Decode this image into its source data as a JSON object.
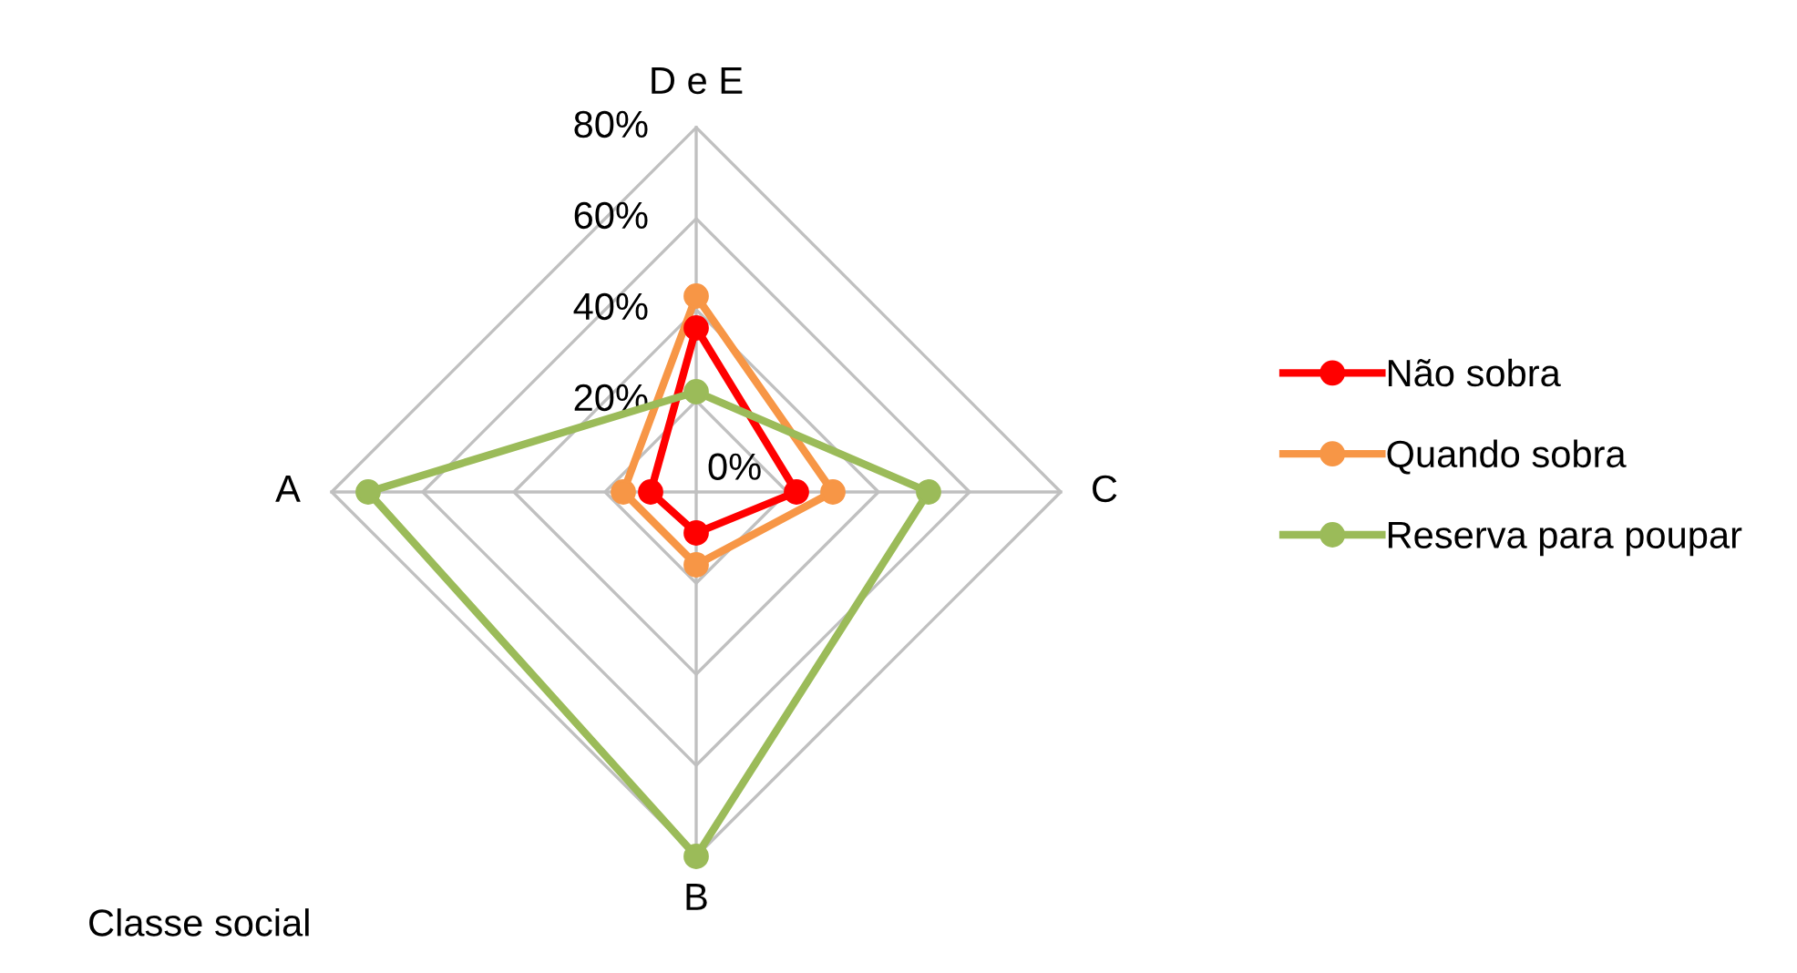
{
  "chart_data": {
    "type": "radar",
    "categories": [
      "D e E",
      "C",
      "B",
      "A"
    ],
    "series": [
      {
        "name": "Não sobra",
        "color": "#ff0000",
        "values": [
          36,
          22,
          9,
          10
        ]
      },
      {
        "name": "Quando sobra",
        "color": "#f79646",
        "values": [
          43,
          30,
          16,
          16
        ]
      },
      {
        "name": "Reserva para poupar",
        "color": "#9bbb59",
        "values": [
          22,
          51,
          80,
          72
        ]
      }
    ],
    "ylim": [
      0,
      80
    ],
    "yticks": [
      {
        "value": 0,
        "label": "0%"
      },
      {
        "value": 20,
        "label": "20%"
      },
      {
        "value": 40,
        "label": "40%"
      },
      {
        "value": 60,
        "label": "60%"
      },
      {
        "value": 80,
        "label": "80%"
      }
    ],
    "grid": true,
    "legend": "right",
    "marker": "circle",
    "line_style": "solid",
    "annotations": [
      "Classe social"
    ]
  }
}
